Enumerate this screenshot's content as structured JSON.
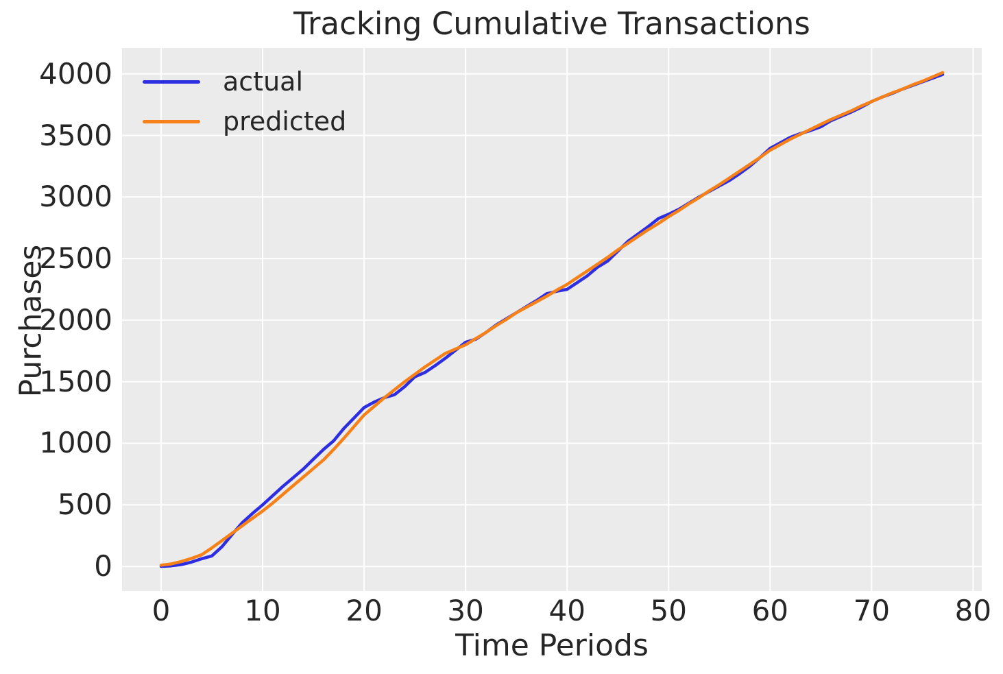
{
  "title": "Tracking Cumulative Transactions",
  "axes": {
    "x_label": "Time Periods",
    "y_label": "Purchases"
  },
  "legend": {
    "items": [
      {
        "label": "actual",
        "color": "#2d2de1"
      },
      {
        "label": "predicted",
        "color": "#f68118"
      }
    ]
  },
  "style": {
    "plot_background": "#ebebeb",
    "grid_color": "#ffffff",
    "text_color": "#262626",
    "actual_color": "#2d2de1",
    "predicted_color": "#f68118"
  },
  "chart_data": {
    "type": "line",
    "title": "Tracking Cumulative Transactions",
    "xlabel": "Time Periods",
    "ylabel": "Purchases",
    "xlim": [
      -3.85,
      80.85
    ],
    "ylim": [
      -200,
      4210
    ],
    "x_ticks": [
      0,
      10,
      20,
      30,
      40,
      50,
      60,
      70,
      80
    ],
    "y_ticks": [
      0,
      500,
      1000,
      1500,
      2000,
      2500,
      3000,
      3500,
      4000
    ],
    "grid": true,
    "legend_position": "upper left",
    "x": [
      0,
      1,
      2,
      3,
      4,
      5,
      6,
      7,
      8,
      9,
      10,
      11,
      12,
      13,
      14,
      15,
      16,
      17,
      18,
      19,
      20,
      21,
      22,
      23,
      24,
      25,
      26,
      27,
      28,
      29,
      30,
      31,
      32,
      33,
      34,
      35,
      36,
      37,
      38,
      39,
      40,
      41,
      42,
      43,
      44,
      45,
      46,
      47,
      48,
      49,
      50,
      51,
      52,
      53,
      54,
      55,
      56,
      57,
      58,
      59,
      60,
      61,
      62,
      63,
      64,
      65,
      66,
      67,
      68,
      69,
      70,
      71,
      72,
      73,
      74,
      75,
      76,
      77
    ],
    "series": [
      {
        "name": "actual",
        "color": "#2d2de1",
        "values": [
          0,
          5,
          15,
          35,
          62,
          85,
          160,
          260,
          355,
          430,
          500,
          575,
          650,
          720,
          790,
          870,
          950,
          1020,
          1120,
          1205,
          1290,
          1335,
          1370,
          1395,
          1460,
          1540,
          1575,
          1630,
          1690,
          1755,
          1820,
          1845,
          1900,
          1960,
          2010,
          2060,
          2110,
          2160,
          2215,
          2235,
          2250,
          2305,
          2360,
          2430,
          2480,
          2560,
          2640,
          2700,
          2760,
          2825,
          2860,
          2900,
          2950,
          3000,
          3045,
          3090,
          3135,
          3190,
          3250,
          3320,
          3395,
          3440,
          3485,
          3515,
          3540,
          3570,
          3620,
          3655,
          3690,
          3730,
          3775,
          3810,
          3840,
          3875,
          3905,
          3935,
          3965,
          3995
        ]
      },
      {
        "name": "predicted",
        "color": "#f68118",
        "values": [
          10,
          20,
          40,
          65,
          95,
          150,
          210,
          270,
          330,
          390,
          450,
          515,
          585,
          655,
          725,
          795,
          865,
          950,
          1040,
          1135,
          1230,
          1300,
          1370,
          1435,
          1500,
          1560,
          1620,
          1675,
          1730,
          1765,
          1800,
          1850,
          1900,
          1955,
          2005,
          2060,
          2105,
          2150,
          2195,
          2245,
          2290,
          2345,
          2400,
          2455,
          2510,
          2570,
          2625,
          2680,
          2735,
          2785,
          2840,
          2890,
          2945,
          2995,
          3050,
          3100,
          3155,
          3210,
          3265,
          3320,
          3380,
          3425,
          3470,
          3510,
          3550,
          3590,
          3630,
          3665,
          3700,
          3740,
          3775,
          3810,
          3845,
          3875,
          3910,
          3940,
          3975,
          4010
        ]
      }
    ]
  }
}
